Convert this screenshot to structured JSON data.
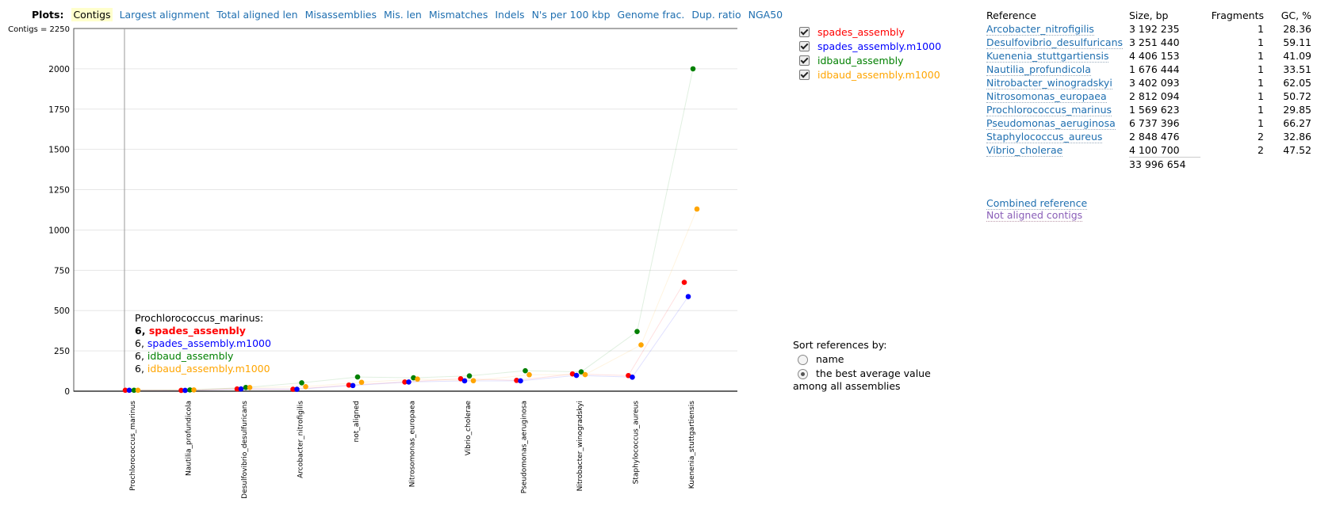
{
  "plots_nav": {
    "label": "Plots:",
    "tabs": [
      "Contigs",
      "Largest alignment",
      "Total aligned len",
      "Misassemblies",
      "Mis. len",
      "Mismatches",
      "Indels",
      "N's per 100 kbp",
      "Genome frac.",
      "Dup. ratio",
      "NGA50"
    ],
    "active": "Contigs"
  },
  "chart_data": {
    "type": "scatter",
    "title": "",
    "ylabel": "Contigs = 2250",
    "ylim": [
      0,
      2250
    ],
    "yticks": [
      0,
      250,
      500,
      750,
      1000,
      1250,
      1500,
      1750,
      2000
    ],
    "categories": [
      "Prochlorococcus_marinus",
      "Nautilia_profundicola",
      "Desulfovibrio_desulfuricans",
      "Arcobacter_nitrofigilis",
      "not_aligned",
      "Nitrosomonas_europaea",
      "Vibrio_cholerae",
      "Pseudomonas_aeruginosa",
      "Nitrobacter_winogradskyi",
      "Staphylococcus_aureus",
      "Kuenenia_stuttgartiensis"
    ],
    "series": [
      {
        "name": "spades_assembly",
        "color": "#ff0000",
        "values": [
          6,
          5,
          14,
          12,
          38,
          57,
          77,
          67,
          107,
          97,
          675
        ]
      },
      {
        "name": "spades_assembly.m1000",
        "color": "#0000ff",
        "values": [
          6,
          5,
          14,
          12,
          35,
          57,
          64,
          64,
          98,
          87,
          587
        ]
      },
      {
        "name": "idbaud_assembly",
        "color": "#008000",
        "values": [
          6,
          8,
          23,
          52,
          88,
          83,
          95,
          127,
          120,
          370,
          2000
        ]
      },
      {
        "name": "idbaud_assembly.m1000",
        "color": "#ffa500",
        "values": [
          6,
          8,
          23,
          28,
          55,
          75,
          65,
          102,
          103,
          287,
          1130
        ]
      }
    ],
    "tooltip": {
      "category": "Prochlorococcus_marinus:",
      "lines": [
        {
          "value": "6,",
          "name": "spades_assembly",
          "bold": true
        },
        {
          "value": "6,",
          "name": "spades_assembly.m1000",
          "bold": false
        },
        {
          "value": "6,",
          "name": "idbaud_assembly",
          "bold": false
        },
        {
          "value": "6,",
          "name": "idbaud_assembly.m1000",
          "bold": false
        }
      ]
    }
  },
  "legend": {
    "items": [
      {
        "label": "spades_assembly",
        "color": "#ff0000",
        "checked": true
      },
      {
        "label": "spades_assembly.m1000",
        "color": "#0000ff",
        "checked": true
      },
      {
        "label": "idbaud_assembly",
        "color": "#008000",
        "checked": true
      },
      {
        "label": "idbaud_assembly.m1000",
        "color": "#ffa500",
        "checked": true
      }
    ]
  },
  "sort": {
    "title": "Sort references by:",
    "options": [
      {
        "label": "name",
        "checked": false
      },
      {
        "label": "the best average value",
        "checked": true
      }
    ],
    "note": "among all assemblies"
  },
  "reference_table": {
    "headers": [
      "Reference",
      "Size, bp",
      "Fragments",
      "GC, %"
    ],
    "rows": [
      [
        "Arcobacter_nitrofigilis",
        "3 192 235",
        "1",
        "28.36"
      ],
      [
        "Desulfovibrio_desulfuricans",
        "3 251 440",
        "1",
        "59.11"
      ],
      [
        "Kuenenia_stuttgartiensis",
        "4 406 153",
        "1",
        "41.09"
      ],
      [
        "Nautilia_profundicola",
        "1 676 444",
        "1",
        "33.51"
      ],
      [
        "Nitrobacter_winogradskyi",
        "3 402 093",
        "1",
        "62.05"
      ],
      [
        "Nitrosomonas_europaea",
        "2 812 094",
        "1",
        "50.72"
      ],
      [
        "Prochlorococcus_marinus",
        "1 569 623",
        "1",
        "29.85"
      ],
      [
        "Pseudomonas_aeruginosa",
        "6 737 396",
        "1",
        "66.27"
      ],
      [
        "Staphylococcus_aureus",
        "2 848 476",
        "2",
        "32.86"
      ],
      [
        "Vibrio_cholerae",
        "4 100 700",
        "2",
        "47.52"
      ]
    ],
    "total": "33 996 654"
  },
  "links": {
    "combined": "Combined reference",
    "not_aligned": "Not aligned contigs"
  }
}
